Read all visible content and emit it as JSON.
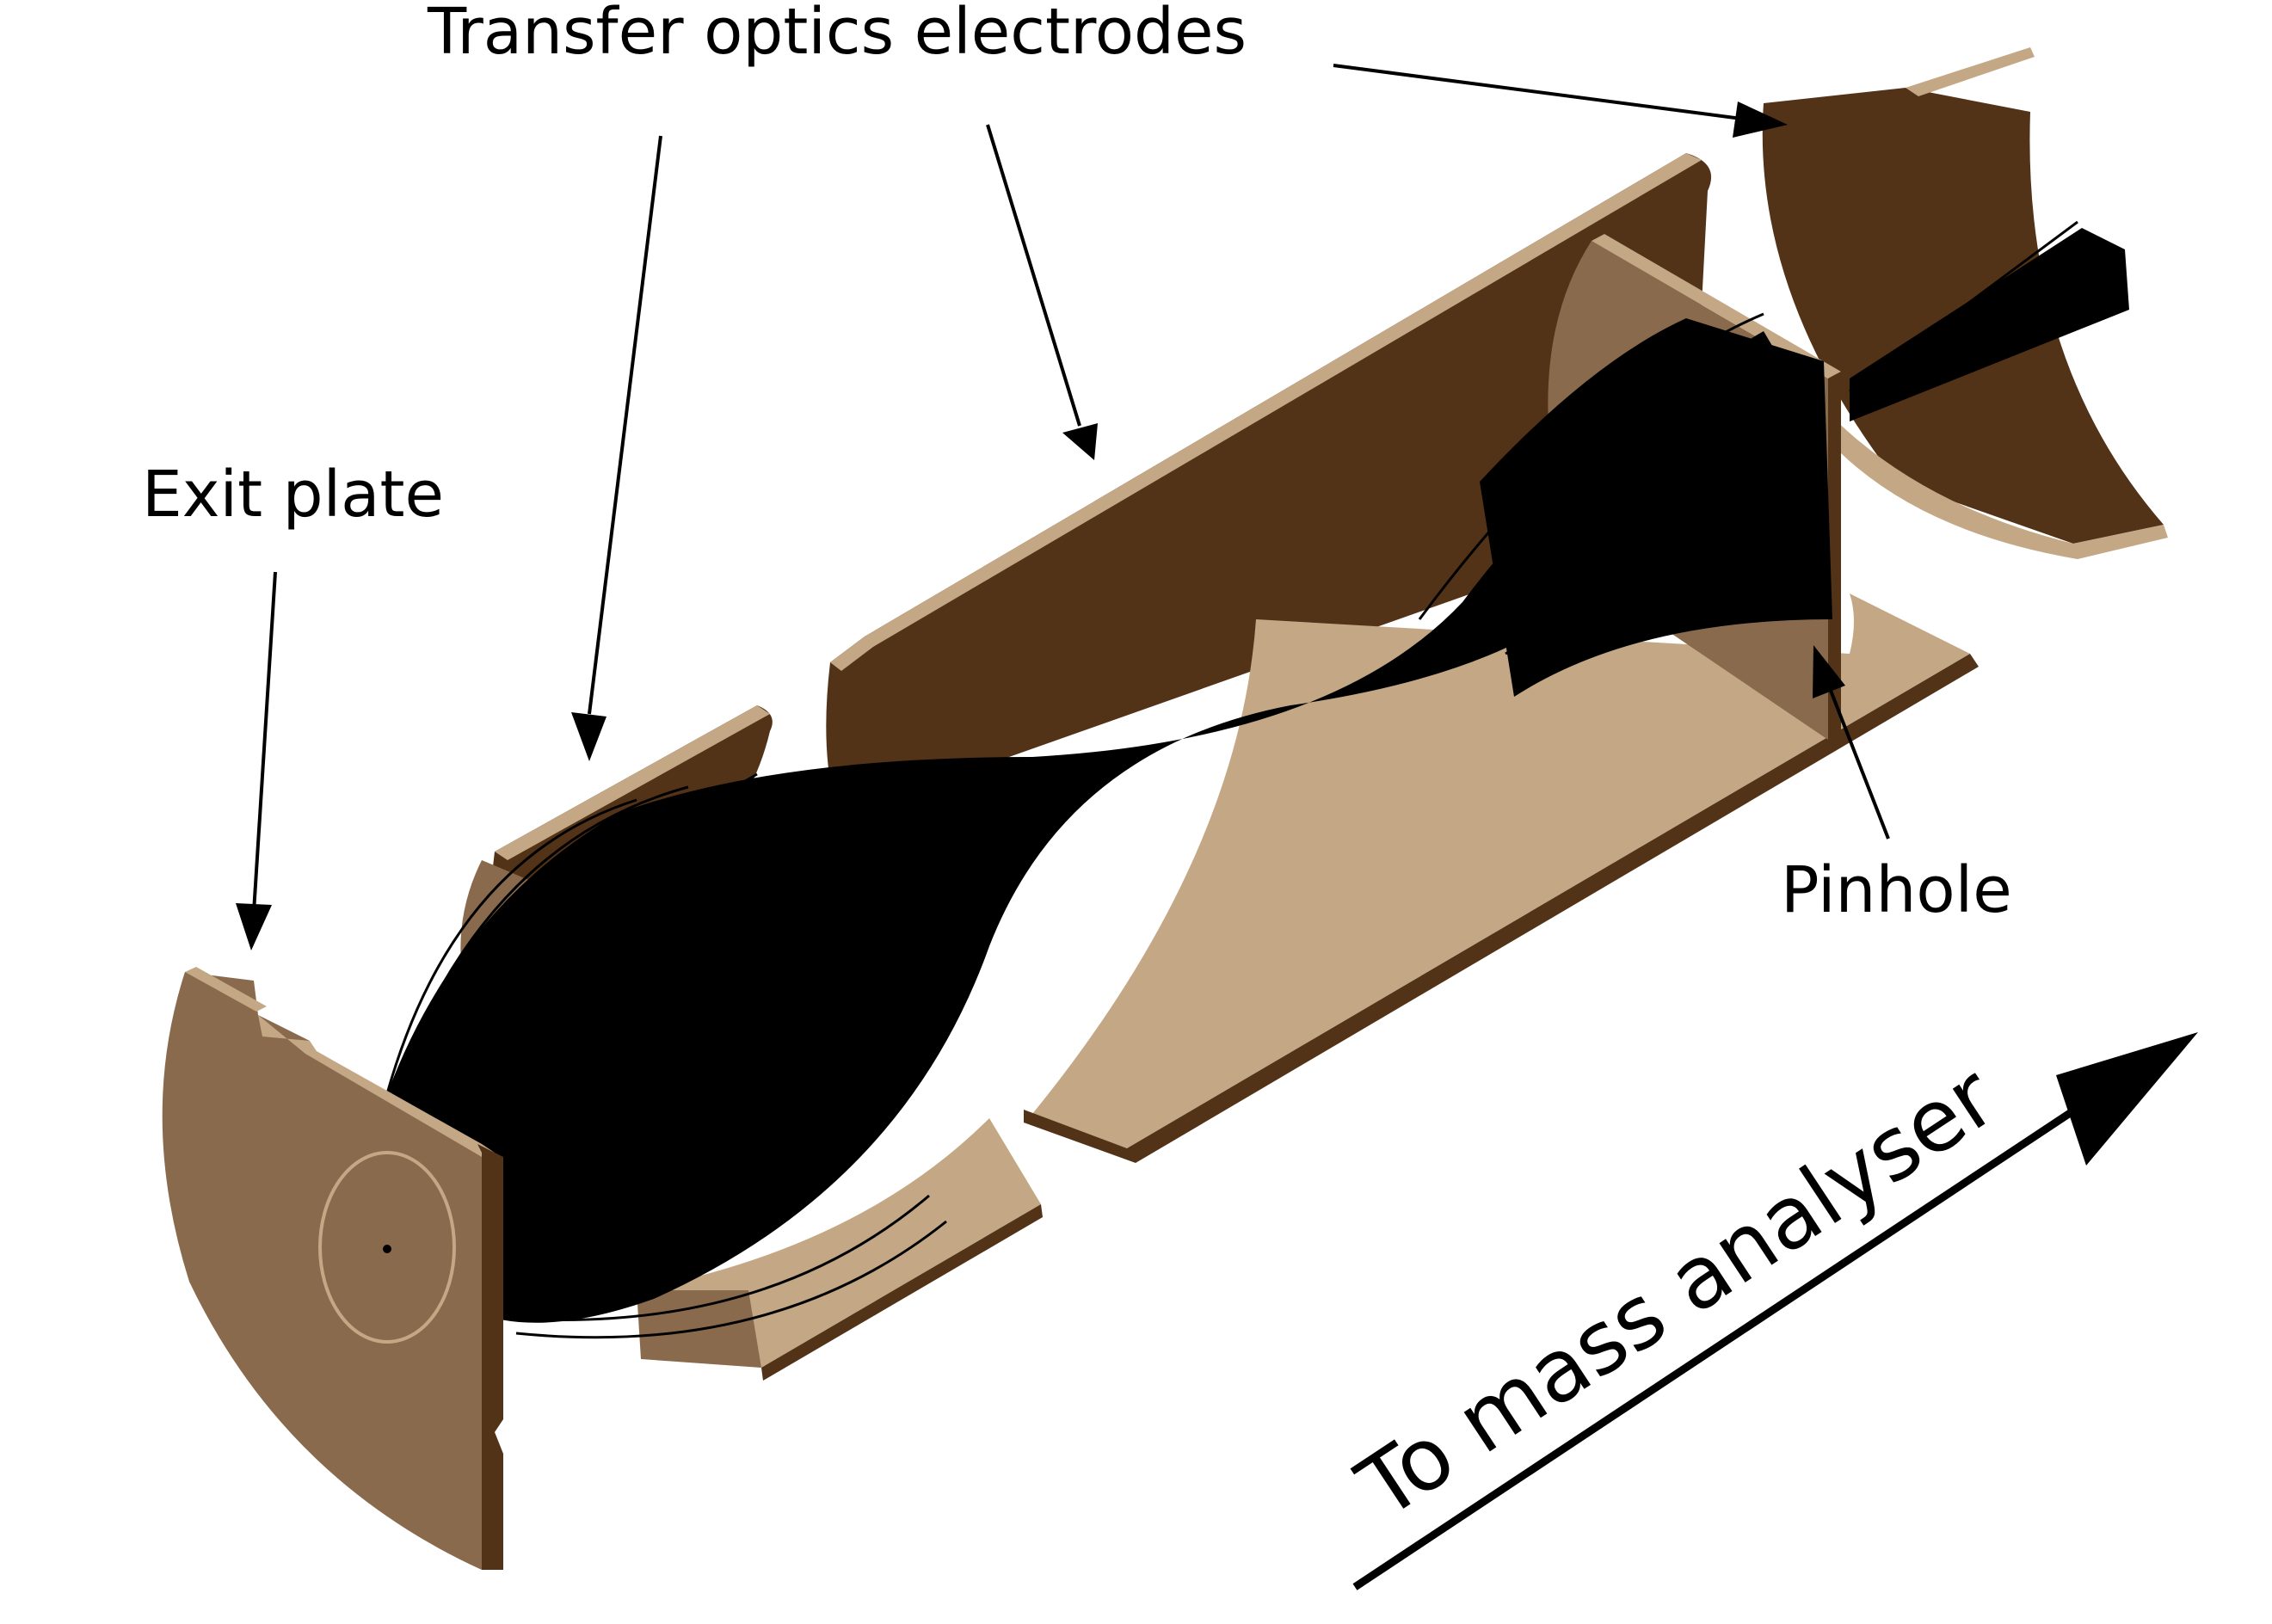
{
  "labels": {
    "transfer_optics": "Transfer optics electrodes",
    "exit_plate": "Exit plate",
    "pinhole": "Pinhole",
    "to_mass_analyser": "To mass analyser"
  },
  "colors": {
    "light_face": "#c4a885",
    "mid_face": "#8a6a4c",
    "dark_face": "#523318",
    "beam": "#000000",
    "background": "#ffffff"
  }
}
